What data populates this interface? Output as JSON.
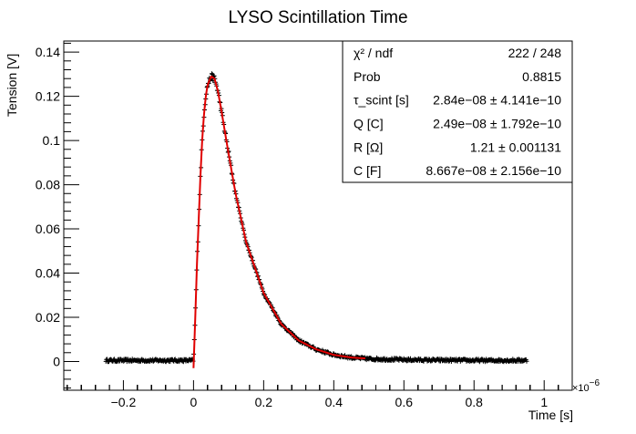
{
  "chart_data": {
    "type": "scatter",
    "title": "LYSO Scintillation Time",
    "xlabel": "Time [s]",
    "ylabel": "Tension [V]",
    "x_exponent_label": "×10",
    "x_exponent_power": "−6",
    "x_unit_scale": 1e-06,
    "xlim": [
      -3.7e-07,
      1.08e-06
    ],
    "ylim": [
      -0.013,
      0.145
    ],
    "x_ticks": [
      -2e-07,
      0,
      2e-07,
      4e-07,
      6e-07,
      8e-07,
      1e-06
    ],
    "x_tick_labels": [
      "−0.2",
      "0",
      "0.2",
      "0.4",
      "0.6",
      "0.8",
      "1"
    ],
    "y_ticks": [
      0,
      0.02,
      0.04,
      0.06,
      0.08,
      0.1,
      0.12,
      0.14
    ],
    "y_tick_labels": [
      "0",
      "0.02",
      "0.04",
      "0.06",
      "0.08",
      "0.1",
      "0.12",
      "0.14"
    ],
    "grid": false,
    "legend_position": "top-right",
    "series": [
      {
        "kind": "data",
        "color": "#000000",
        "x_range": [
          -2.5e-07,
          9.5e-07
        ],
        "points": [
          [
            -2.5e-07,
            0.0005
          ],
          [
            -2e-07,
            0.0005
          ],
          [
            -1e-07,
            0.0005
          ],
          [
            0,
            0.0005
          ],
          [
            5e-09,
            0.02
          ],
          [
            1e-08,
            0.045
          ],
          [
            1.5e-08,
            0.065
          ],
          [
            2e-08,
            0.085
          ],
          [
            2.5e-08,
            0.101
          ],
          [
            3e-08,
            0.112
          ],
          [
            3.5e-08,
            0.12
          ],
          [
            4e-08,
            0.125
          ],
          [
            5e-08,
            0.129
          ],
          [
            6e-08,
            0.128
          ],
          [
            7e-08,
            0.122
          ],
          [
            8e-08,
            0.113
          ],
          [
            1e-07,
            0.094
          ],
          [
            1.2e-07,
            0.076
          ],
          [
            1.5e-07,
            0.054
          ],
          [
            2e-07,
            0.031
          ],
          [
            2.5e-07,
            0.017
          ],
          [
            3e-07,
            0.0095
          ],
          [
            3.5e-07,
            0.0055
          ],
          [
            4e-07,
            0.003
          ],
          [
            4.5e-07,
            0.0018
          ],
          [
            5e-07,
            0.0012
          ],
          [
            6e-07,
            0.0008
          ],
          [
            7e-07,
            0.0006
          ],
          [
            8e-07,
            0.0005
          ],
          [
            9.5e-07,
            0.0005
          ]
        ]
      },
      {
        "kind": "fit",
        "color": "#e00000",
        "x_range": [
          0,
          4.9e-07
        ],
        "points": [
          [
            0,
            -0.003
          ],
          [
            5e-09,
            0.02
          ],
          [
            1e-08,
            0.045
          ],
          [
            1.5e-08,
            0.065
          ],
          [
            2e-08,
            0.085
          ],
          [
            2.5e-08,
            0.101
          ],
          [
            3e-08,
            0.112
          ],
          [
            3.5e-08,
            0.12
          ],
          [
            4e-08,
            0.125
          ],
          [
            5e-08,
            0.129
          ],
          [
            6e-08,
            0.128
          ],
          [
            7e-08,
            0.122
          ],
          [
            8e-08,
            0.113
          ],
          [
            1e-07,
            0.094
          ],
          [
            1.2e-07,
            0.076
          ],
          [
            1.5e-07,
            0.054
          ],
          [
            2e-07,
            0.031
          ],
          [
            2.5e-07,
            0.017
          ],
          [
            3e-07,
            0.0095
          ],
          [
            3.5e-07,
            0.0055
          ],
          [
            4e-07,
            0.003
          ],
          [
            4.5e-07,
            0.0018
          ],
          [
            4.9e-07,
            0.0014
          ]
        ]
      }
    ],
    "stats_box": {
      "rows": [
        {
          "key": "χ² / ndf",
          "value": "222 / 248"
        },
        {
          "key": "Prob",
          "value": "0.8815"
        },
        {
          "key": "τ_scint [s]",
          "value": "2.84e−08 ± 4.141e−10"
        },
        {
          "key": "Q [C]",
          "value": "2.49e−08 ± 1.792e−10"
        },
        {
          "key": "R [Ω]",
          "value": "1.21 ± 0.001131"
        },
        {
          "key": "C [F]",
          "value": "8.667e−08 ± 2.156e−10"
        }
      ]
    }
  }
}
